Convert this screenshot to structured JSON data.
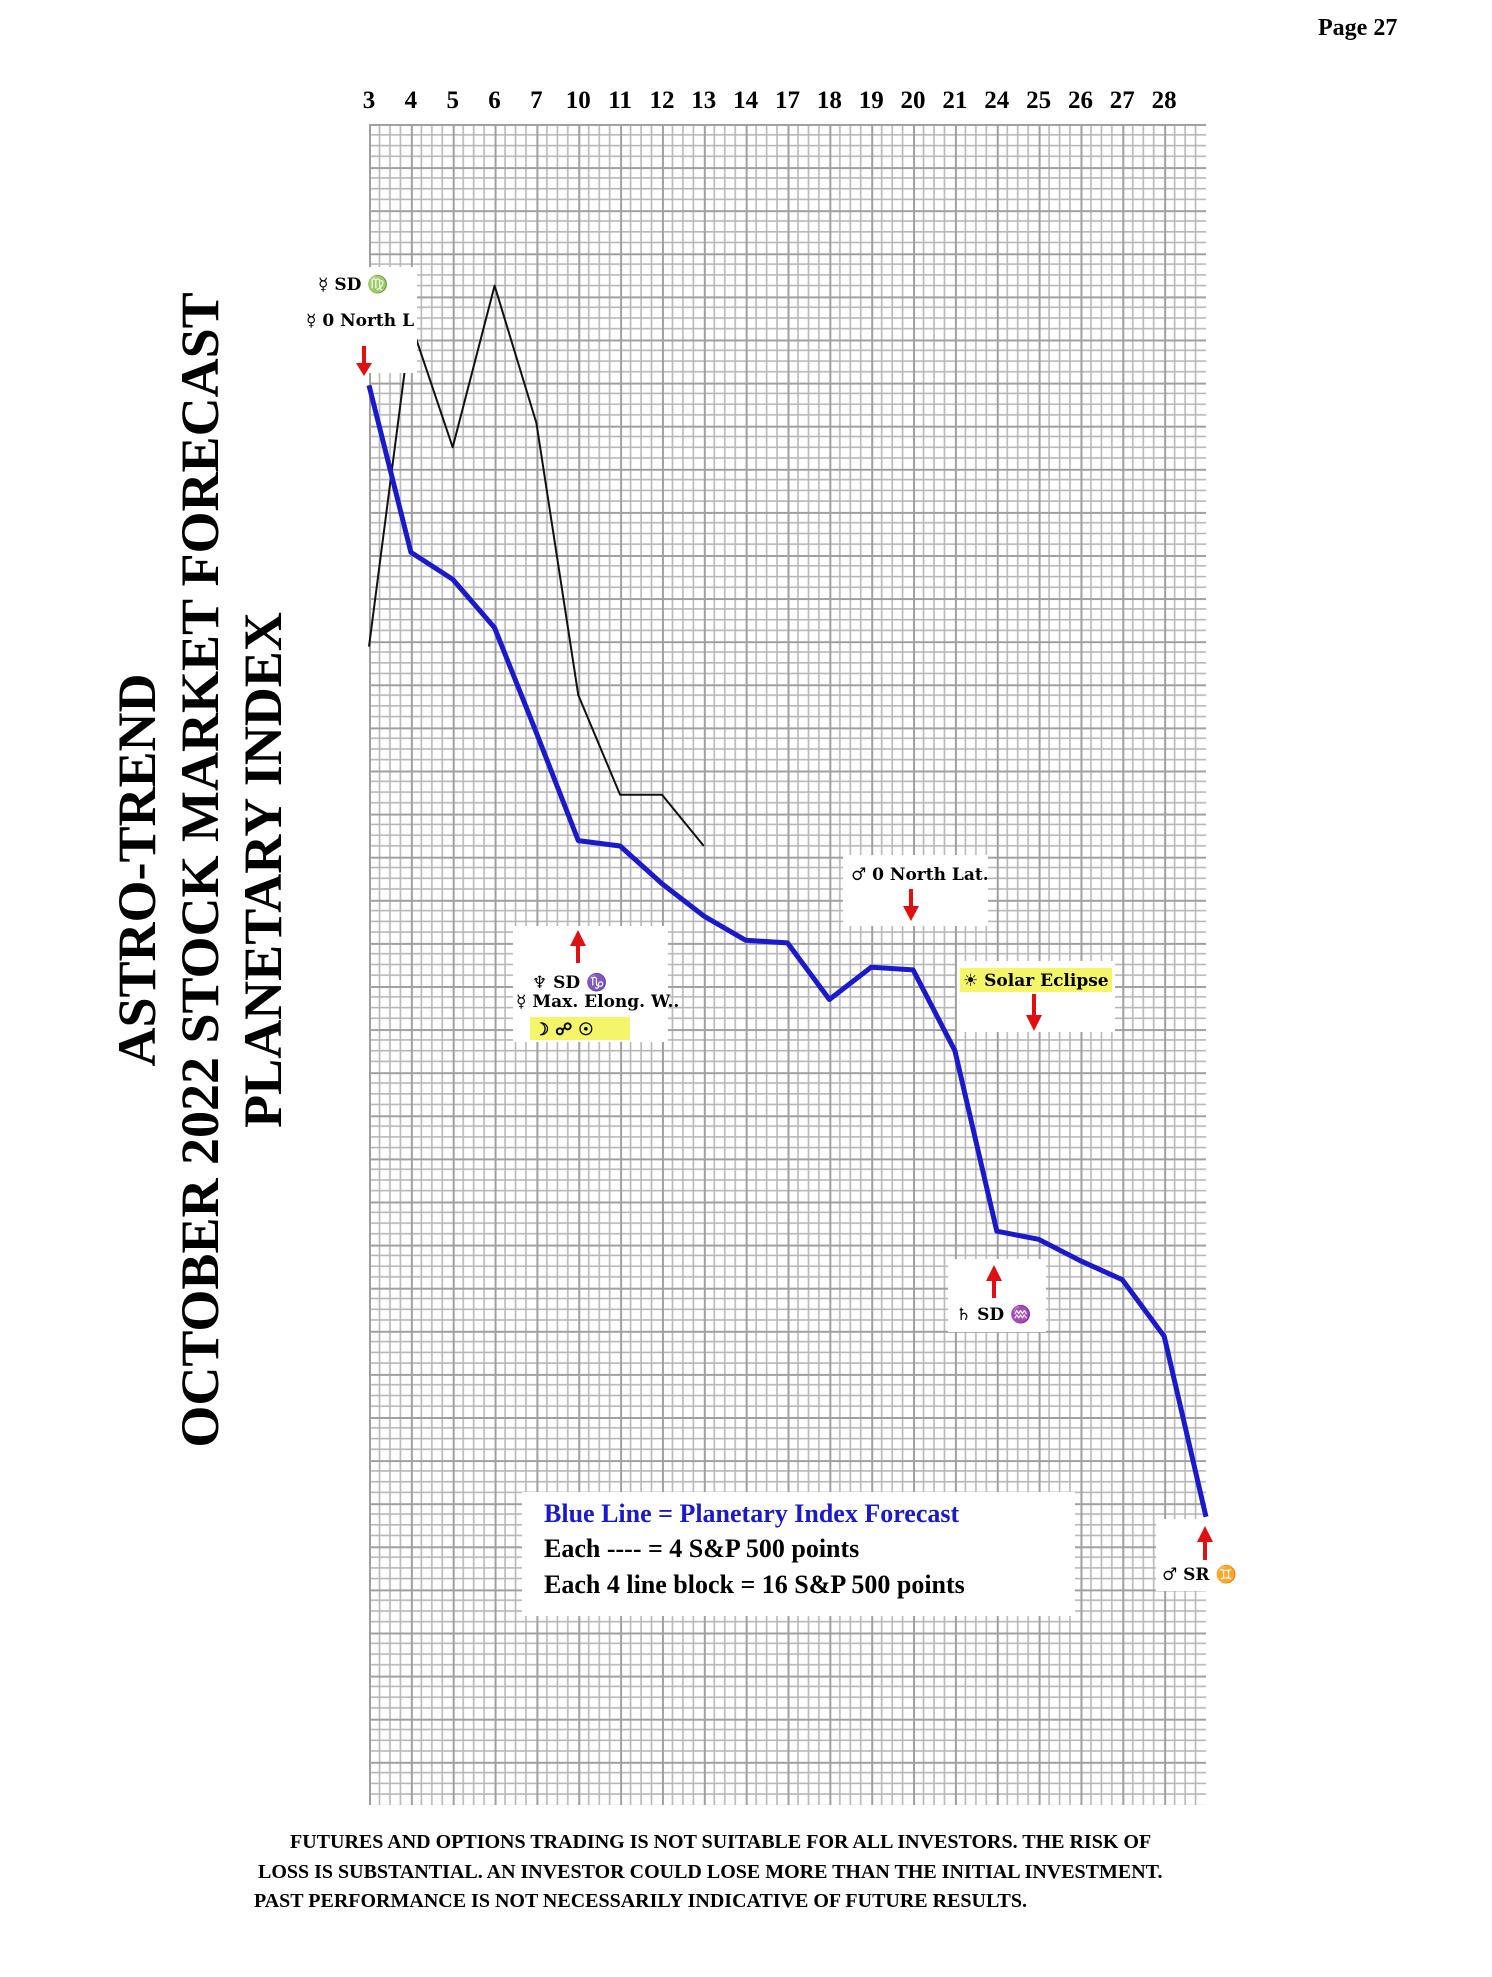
{
  "page_label": "Page  27",
  "chart_data": {
    "type": "line",
    "title_lines": [
      "ASTRO-TREND",
      "OCTOBER 2022 STOCK MARKET FORECAST",
      "PLANETARY INDEX"
    ],
    "categories": [
      "3",
      "4",
      "5",
      "6",
      "7",
      "10",
      "11",
      "12",
      "13",
      "14",
      "17",
      "18",
      "19",
      "20",
      "21",
      "24",
      "25",
      "26",
      "27",
      "28",
      null
    ],
    "ylim": [
      0,
      624
    ],
    "series": [
      {
        "name": "Blue Line = Planetary Index Forecast",
        "color": "#1a1acc",
        "values": [
          527,
          465,
          455,
          437,
          398,
          358,
          356,
          342,
          330,
          321,
          320,
          299,
          311,
          310,
          280,
          213,
          210,
          202,
          195,
          174,
          107
        ]
      },
      {
        "color": "#111111",
        "values": [
          430,
          550,
          504,
          564,
          513,
          412,
          375,
          375,
          356,
          null,
          null,
          null,
          null,
          null,
          null,
          null,
          null,
          null,
          null,
          null,
          null
        ]
      }
    ],
    "legend_notes": [
      "Each ---- =   4 S&P 500 points",
      "Each 4 line block =  16  S&P 500 points"
    ],
    "annotations": [
      [
        "☿ SD ♍",
        "☿ 0 North L"
      ],
      [
        "♆ SD ♑",
        "☿ Max. Elong. W..",
        "☽ ☍ ☉"
      ],
      [
        "♂ 0 North Lat."
      ],
      [
        "☀ Solar Eclipse"
      ],
      [
        "♄ SD ♒"
      ],
      [
        "♂ SR ♊"
      ]
    ]
  },
  "disclaimer": [
    "FUTURES AND OPTIONS TRADING IS NOT SUITABLE FOR ALL INVESTORS.  THE RISK OF",
    "LOSS IS SUBSTANTIAL.  AN INVESTOR COULD LOSE MORE THAN THE INITIAL INVESTMENT.",
    "PAST PERFORMANCE IS NOT NECESSARILY INDICATIVE OF FUTURE RESULTS."
  ]
}
